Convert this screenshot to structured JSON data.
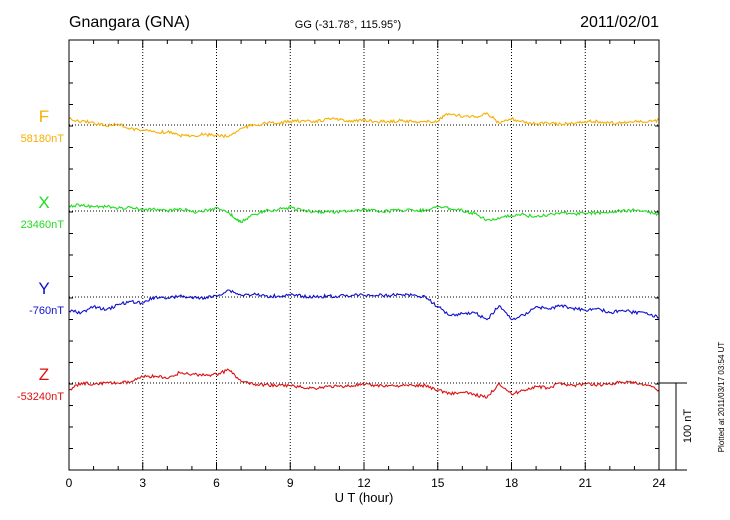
{
  "header": {
    "station": "Gnangara (GNA)",
    "coords": "GG (-31.78°, 115.95°)",
    "date": "2011/02/01"
  },
  "footer": {
    "plotted": "Plotted at 2011/03/17 03:54 UT"
  },
  "chart_data": {
    "type": "line",
    "xlabel": "U T (hour)",
    "x_ticks": [
      0,
      3,
      6,
      9,
      12,
      15,
      18,
      21,
      24
    ],
    "xlim": [
      0,
      24
    ],
    "scale_bar": "100 nT",
    "grid": "dotted at 3-hour intervals and component baselines",
    "series": [
      {
        "name": "F",
        "baseline_label": "58180nT",
        "baseline": 58180,
        "color": "#f5b000",
        "points": [
          [
            0,
            58187
          ],
          [
            0.5,
            58184
          ],
          [
            1,
            58183
          ],
          [
            1.5,
            58179
          ],
          [
            2,
            58181
          ],
          [
            2.5,
            58176
          ],
          [
            3,
            58174
          ],
          [
            3.5,
            58172
          ],
          [
            4,
            58172
          ],
          [
            4.5,
            58168
          ],
          [
            5,
            58168
          ],
          [
            5.5,
            58169
          ],
          [
            6,
            58168
          ],
          [
            6.5,
            58167
          ],
          [
            7,
            58176
          ],
          [
            7.5,
            58180
          ],
          [
            8,
            58182
          ],
          [
            8.5,
            58182
          ],
          [
            9,
            58184
          ],
          [
            9.5,
            58185
          ],
          [
            10,
            58183
          ],
          [
            10.5,
            58187
          ],
          [
            11,
            58186
          ],
          [
            11.5,
            58185
          ],
          [
            12,
            58185
          ],
          [
            12.5,
            58184
          ],
          [
            13,
            58184
          ],
          [
            13.5,
            58185
          ],
          [
            14,
            58184
          ],
          [
            14.5,
            58184
          ],
          [
            15,
            58184
          ],
          [
            15.3,
            58192
          ],
          [
            15.8,
            58191
          ],
          [
            16.5,
            58189
          ],
          [
            17,
            58194
          ],
          [
            17.5,
            58182
          ],
          [
            18,
            58187
          ],
          [
            18.5,
            58184
          ],
          [
            19,
            58181
          ],
          [
            19.5,
            58182
          ],
          [
            20,
            58181
          ],
          [
            20.5,
            58182
          ],
          [
            21,
            58184
          ],
          [
            21.5,
            58184
          ],
          [
            22,
            58182
          ],
          [
            22.5,
            58183
          ],
          [
            23,
            58184
          ],
          [
            23.5,
            58183
          ],
          [
            24,
            58186
          ]
        ]
      },
      {
        "name": "X",
        "baseline_label": "23460nT",
        "baseline": 23460,
        "color": "#22dd22",
        "points": [
          [
            0,
            23466
          ],
          [
            0.5,
            23467
          ],
          [
            1,
            23465
          ],
          [
            1.5,
            23465
          ],
          [
            2,
            23463
          ],
          [
            2.5,
            23464
          ],
          [
            3,
            23461
          ],
          [
            3.5,
            23462
          ],
          [
            4,
            23460
          ],
          [
            4.5,
            23463
          ],
          [
            5,
            23459
          ],
          [
            5.5,
            23460
          ],
          [
            6,
            23464
          ],
          [
            6.5,
            23458
          ],
          [
            6.8,
            23450
          ],
          [
            7,
            23447
          ],
          [
            7.5,
            23456
          ],
          [
            8,
            23460
          ],
          [
            8.5,
            23462
          ],
          [
            9,
            23464
          ],
          [
            9.5,
            23461
          ],
          [
            10,
            23459
          ],
          [
            10.5,
            23459
          ],
          [
            11,
            23459
          ],
          [
            11.5,
            23461
          ],
          [
            12,
            23461
          ],
          [
            12.5,
            23460
          ],
          [
            13,
            23460
          ],
          [
            13.5,
            23461
          ],
          [
            14,
            23461
          ],
          [
            14.5,
            23461
          ],
          [
            15,
            23465
          ],
          [
            15.5,
            23463
          ],
          [
            16,
            23461
          ],
          [
            16.5,
            23457
          ],
          [
            17,
            23450
          ],
          [
            17.5,
            23451
          ],
          [
            18,
            23455
          ],
          [
            18.5,
            23456
          ],
          [
            19,
            23453
          ],
          [
            19.5,
            23456
          ],
          [
            20,
            23458
          ],
          [
            20.5,
            23457
          ],
          [
            21,
            23457
          ],
          [
            21.5,
            23458
          ],
          [
            22,
            23459
          ],
          [
            22.5,
            23460
          ],
          [
            23,
            23461
          ],
          [
            23.5,
            23460
          ],
          [
            24,
            23456
          ]
        ]
      },
      {
        "name": "Y",
        "baseline_label": "-760nT",
        "baseline": -760,
        "color": "#1010cc",
        "points": [
          [
            0,
            -776
          ],
          [
            0.5,
            -778
          ],
          [
            1,
            -771
          ],
          [
            1.5,
            -775
          ],
          [
            2,
            -769
          ],
          [
            2.5,
            -765
          ],
          [
            3,
            -767
          ],
          [
            3.5,
            -760
          ],
          [
            4,
            -761
          ],
          [
            4.5,
            -759
          ],
          [
            5,
            -761
          ],
          [
            5.5,
            -761
          ],
          [
            6,
            -759
          ],
          [
            6.5,
            -752
          ],
          [
            7,
            -758
          ],
          [
            7.5,
            -757
          ],
          [
            8,
            -759
          ],
          [
            8.5,
            -759
          ],
          [
            9,
            -758
          ],
          [
            9.5,
            -759
          ],
          [
            10,
            -760
          ],
          [
            10.5,
            -759
          ],
          [
            11,
            -759
          ],
          [
            11.5,
            -758
          ],
          [
            12,
            -758
          ],
          [
            12.5,
            -758
          ],
          [
            13,
            -758
          ],
          [
            13.5,
            -757
          ],
          [
            14,
            -758
          ],
          [
            14.5,
            -760
          ],
          [
            15,
            -771
          ],
          [
            15.5,
            -781
          ],
          [
            16,
            -779
          ],
          [
            16.5,
            -778
          ],
          [
            17,
            -786
          ],
          [
            17.5,
            -770
          ],
          [
            18,
            -786
          ],
          [
            18.5,
            -781
          ],
          [
            19,
            -771
          ],
          [
            19.5,
            -774
          ],
          [
            20,
            -770
          ],
          [
            20.5,
            -773
          ],
          [
            21,
            -775
          ],
          [
            21.5,
            -773
          ],
          [
            22,
            -778
          ],
          [
            22.5,
            -775
          ],
          [
            23,
            -778
          ],
          [
            23.5,
            -778
          ],
          [
            24,
            -784
          ]
        ]
      },
      {
        "name": "Z",
        "baseline_label": "-53240nT",
        "baseline": -53240,
        "color": "#dd1111",
        "points": [
          [
            0,
            -53248
          ],
          [
            0.5,
            -53240
          ],
          [
            1,
            -53241
          ],
          [
            1.5,
            -53240
          ],
          [
            2,
            -53240
          ],
          [
            2.5,
            -53239
          ],
          [
            3,
            -53233
          ],
          [
            3.5,
            -53232
          ],
          [
            4,
            -53235
          ],
          [
            4.5,
            -53228
          ],
          [
            5,
            -53230
          ],
          [
            5.5,
            -53231
          ],
          [
            6,
            -53230
          ],
          [
            6.5,
            -53225
          ],
          [
            7,
            -53238
          ],
          [
            7.5,
            -53242
          ],
          [
            8,
            -53242
          ],
          [
            8.5,
            -53243
          ],
          [
            9,
            -53243
          ],
          [
            9.5,
            -53245
          ],
          [
            10,
            -53246
          ],
          [
            10.5,
            -53244
          ],
          [
            11,
            -53244
          ],
          [
            11.5,
            -53243
          ],
          [
            12,
            -53242
          ],
          [
            12.5,
            -53243
          ],
          [
            13,
            -53243
          ],
          [
            13.5,
            -53243
          ],
          [
            14,
            -53243
          ],
          [
            14.5,
            -53243
          ],
          [
            15,
            -53248
          ],
          [
            15.5,
            -53252
          ],
          [
            16,
            -53251
          ],
          [
            16.5,
            -53253
          ],
          [
            17,
            -53257
          ],
          [
            17.5,
            -53240
          ],
          [
            18,
            -53253
          ],
          [
            18.5,
            -53248
          ],
          [
            19,
            -53244
          ],
          [
            19.5,
            -53246
          ],
          [
            20,
            -53240
          ],
          [
            20.5,
            -53243
          ],
          [
            21,
            -53241
          ],
          [
            21.5,
            -53242
          ],
          [
            22,
            -53241
          ],
          [
            22.5,
            -53239
          ],
          [
            23,
            -53240
          ],
          [
            23.5,
            -53243
          ],
          [
            24,
            -53248
          ]
        ]
      }
    ]
  }
}
